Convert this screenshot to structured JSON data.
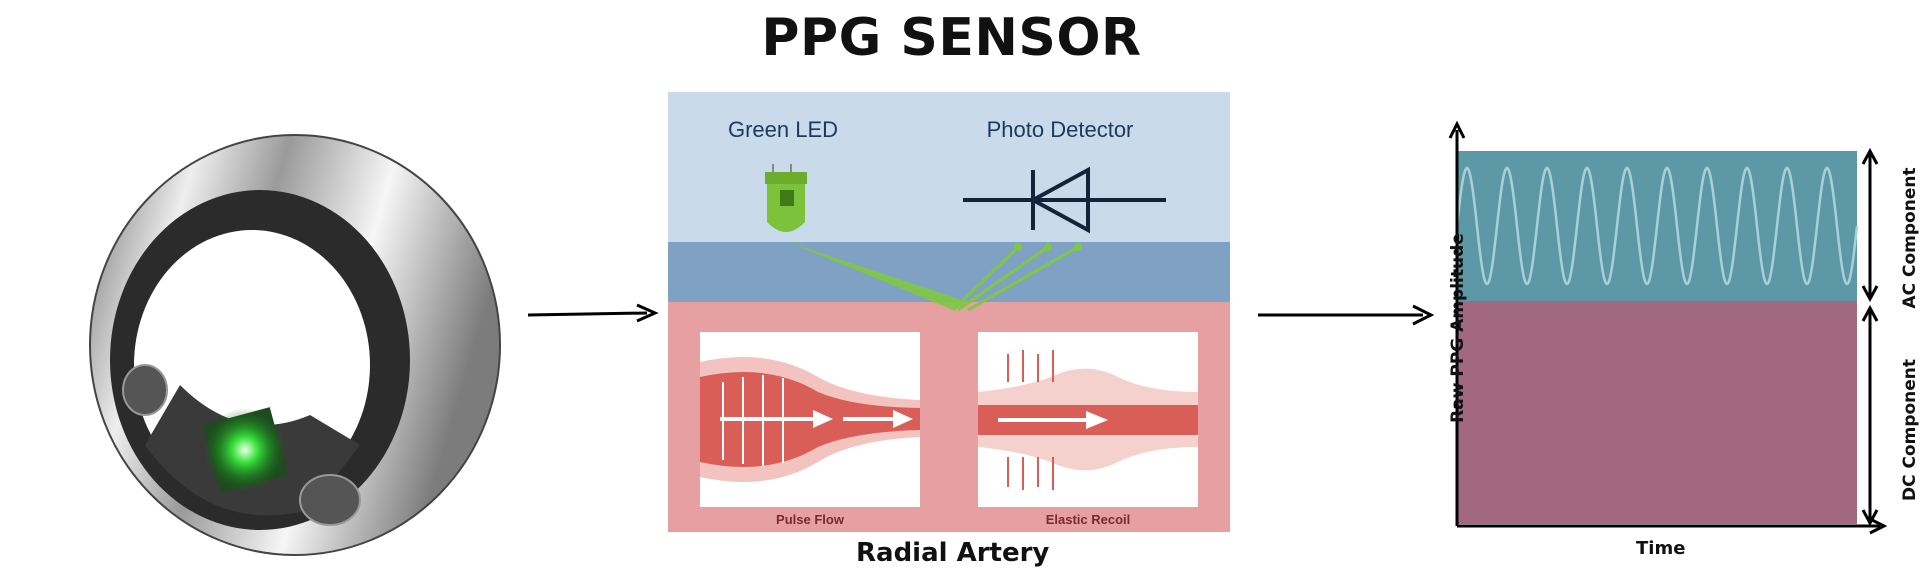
{
  "title": "PPG SENSOR",
  "sensor_panel": {
    "led_label": "Green LED",
    "detector_label": "Photo Detector",
    "pulse_flow_label": "Pulse Flow",
    "elastic_recoil_label": "Elastic Recoil",
    "caption": "Radial Artery"
  },
  "signal_chart": {
    "y_label": "Raw PPG Amplitude",
    "x_label": "Time",
    "ac_label": "AC Component",
    "dc_label": "DC Component",
    "colors": {
      "ac": "#5d98a6",
      "dc": "#a2687d"
    }
  }
}
